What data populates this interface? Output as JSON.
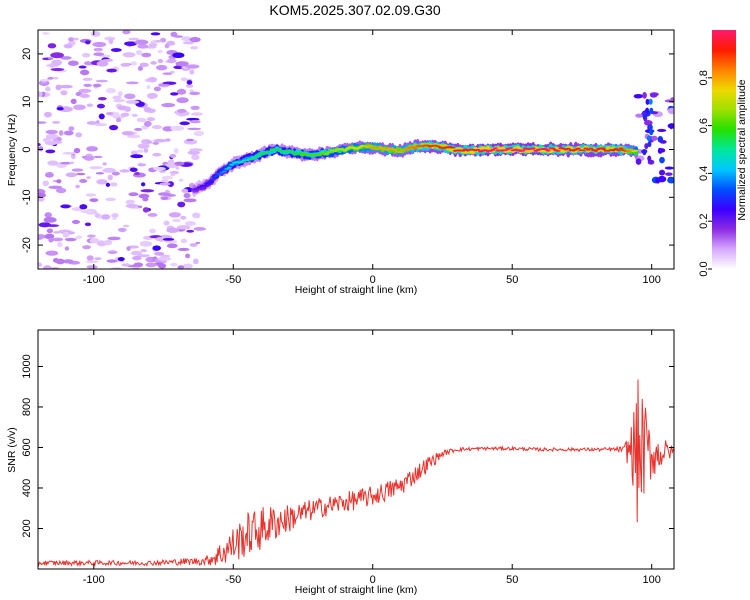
{
  "title": "KOM5.2025.307.02.09.G30",
  "chart_data": [
    {
      "type": "heatmap",
      "name": "spectrogram",
      "xlabel": "Height of straight line (km)",
      "ylabel": "Frequency (Hz)",
      "xlim": [
        -120,
        108
      ],
      "ylim": [
        -25,
        25
      ],
      "xticks": [
        "-100",
        "-50",
        "0",
        "50",
        "100"
      ],
      "yticks": [
        "-20",
        "-10",
        "0",
        "10",
        "20"
      ],
      "colorbar": {
        "label": "Normalized spectral amplitude",
        "range": [
          0.0,
          1.0
        ],
        "ticks": [
          "0.0",
          "0.2",
          "0.4",
          "0.6",
          "0.8"
        ],
        "colors": [
          "#ffffff",
          "#d6a8ff",
          "#8a2be2",
          "#3a00ff",
          "#0050ff",
          "#00c8ff",
          "#00e89a",
          "#26e000",
          "#9ee000",
          "#f0d800",
          "#ff8000",
          "#ff1a00",
          "#ff1a6e"
        ]
      },
      "ridge": {
        "x": [
          -64,
          -60,
          -55,
          -50,
          -45,
          -40,
          -35,
          -30,
          -25,
          -20,
          -15,
          -10,
          -5,
          0,
          5,
          10,
          15,
          20,
          25,
          30,
          35,
          40,
          50,
          60,
          70,
          80,
          90,
          95
        ],
        "freq": [
          -8.5,
          -7.5,
          -5,
          -3,
          -2,
          -1,
          0,
          -0.5,
          -1,
          -1,
          -0.5,
          0,
          0.5,
          0.5,
          0,
          -0.3,
          0.5,
          0.8,
          0.5,
          0,
          -0.3,
          0,
          0,
          0,
          0,
          0,
          0,
          -0.5
        ],
        "amplitude": [
          0.2,
          0.25,
          0.35,
          0.45,
          0.5,
          0.55,
          0.55,
          0.55,
          0.6,
          0.6,
          0.65,
          0.7,
          0.75,
          0.8,
          0.8,
          0.8,
          0.85,
          0.9,
          0.9,
          0.95,
          0.95,
          1.0,
          1.0,
          1.0,
          0.95,
          0.95,
          0.9,
          0.7
        ]
      }
    },
    {
      "type": "line",
      "name": "snr",
      "xlabel": "Height of straight line (km)",
      "ylabel": "SNR (v/v)",
      "xlim": [
        -120,
        108
      ],
      "ylim": [
        0,
        1180
      ],
      "xticks": [
        "-100",
        "-50",
        "0",
        "50",
        "100"
      ],
      "yticks": [
        "200",
        "400",
        "600",
        "800",
        "1000"
      ],
      "color": "#e8322c",
      "envelope": {
        "x": [
          -120,
          -100,
          -80,
          -60,
          -55,
          -50,
          -45,
          -40,
          -35,
          -30,
          -20,
          -10,
          0,
          10,
          20,
          25,
          30,
          40,
          50,
          60,
          70,
          80,
          85,
          90,
          93,
          95,
          97,
          100,
          105,
          108
        ],
        "mean": [
          30,
          30,
          30,
          40,
          70,
          120,
          170,
          200,
          230,
          250,
          300,
          330,
          360,
          410,
          520,
          570,
          590,
          595,
          595,
          590,
          590,
          590,
          590,
          590,
          590,
          560,
          600,
          560,
          580,
          580
        ],
        "noise": [
          12,
          12,
          12,
          20,
          60,
          90,
          110,
          110,
          90,
          70,
          50,
          50,
          50,
          50,
          40,
          15,
          10,
          8,
          8,
          8,
          8,
          8,
          10,
          15,
          150,
          380,
          260,
          120,
          60,
          20
        ]
      }
    }
  ]
}
